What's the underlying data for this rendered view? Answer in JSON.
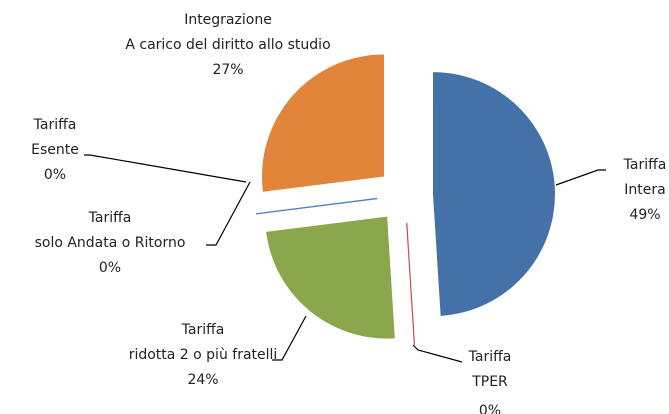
{
  "chart_data": {
    "type": "pie",
    "categories": [
      [
        "Tariffa",
        "Intera"
      ],
      [
        "Tariffa",
        "TPER"
      ],
      [
        "Tariffa",
        "ridotta 2 o più fratelli"
      ],
      [
        "Tariffa",
        "solo Andata o Ritorno"
      ],
      [
        "Tariffa",
        "Esente"
      ],
      [
        "Integrazione",
        "A carico del diritto allo studio"
      ]
    ],
    "values": [
      49,
      0,
      24,
      0,
      0,
      27
    ],
    "value_labels": [
      "49%",
      "0%",
      "24%",
      "0%",
      "0%",
      "27%"
    ],
    "colors": [
      "#4472a8",
      "#c0504d",
      "#8aa84b",
      "#4f81bd",
      "#4f81bd",
      "#e0853a"
    ]
  }
}
